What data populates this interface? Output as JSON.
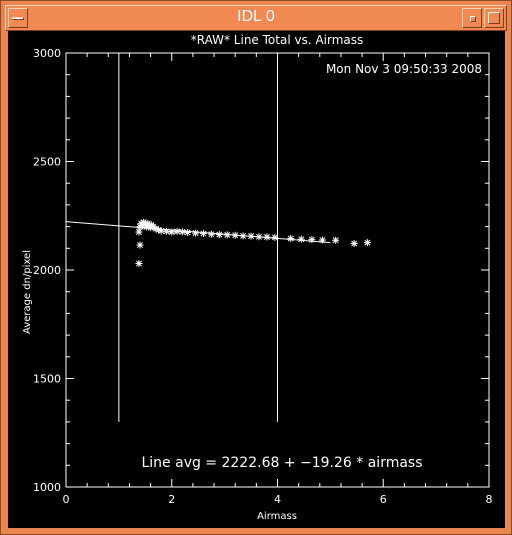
{
  "window": {
    "title": "IDL 0"
  },
  "plot": {
    "title": "*RAW* Line Total vs. Airmass",
    "timestamp": "Mon Nov  3 09:50:33 2008",
    "fit_text": "Line avg = 2222.68 + −19.26 * airmass",
    "colors": {
      "background": "#000000",
      "foreground": "#ffffff",
      "frame": "#e9844f"
    }
  },
  "chart_data": {
    "type": "scatter",
    "title": "*RAW* Line Total vs. Airmass",
    "xlabel": "Airmass",
    "ylabel": "Average dn/pixel",
    "xlim": [
      0,
      8
    ],
    "ylim": [
      1000,
      3000
    ],
    "xticks": [
      "0",
      "2",
      "4",
      "6",
      "8"
    ],
    "yticks": [
      "1000",
      "1500",
      "2000",
      "2500",
      "3000"
    ],
    "marker": "asterisk",
    "points": [
      [
        1.4,
        2200
      ],
      [
        1.42,
        2215
      ],
      [
        1.45,
        2205
      ],
      [
        1.47,
        2220
      ],
      [
        1.5,
        2210
      ],
      [
        1.52,
        2198
      ],
      [
        1.55,
        2215
      ],
      [
        1.57,
        2205
      ],
      [
        1.6,
        2195
      ],
      [
        1.62,
        2208
      ],
      [
        1.65,
        2200
      ],
      [
        1.7,
        2190
      ],
      [
        1.75,
        2185
      ],
      [
        1.8,
        2180
      ],
      [
        1.9,
        2178
      ],
      [
        2.0,
        2175
      ],
      [
        2.1,
        2178
      ],
      [
        2.2,
        2176
      ],
      [
        2.3,
        2173
      ],
      [
        2.45,
        2170
      ],
      [
        2.6,
        2168
      ],
      [
        2.75,
        2165
      ],
      [
        2.9,
        2163
      ],
      [
        3.05,
        2162
      ],
      [
        3.2,
        2160
      ],
      [
        3.35,
        2157
      ],
      [
        3.5,
        2156
      ],
      [
        3.65,
        2153
      ],
      [
        3.8,
        2152
      ],
      [
        3.95,
        2150
      ],
      [
        4.25,
        2145
      ],
      [
        4.45,
        2142
      ],
      [
        4.65,
        2140
      ],
      [
        4.85,
        2138
      ],
      [
        5.1,
        2137
      ],
      [
        5.45,
        2122
      ],
      [
        5.7,
        2126
      ],
      [
        1.38,
        2175
      ],
      [
        1.4,
        2115
      ],
      [
        1.38,
        2030
      ]
    ],
    "fit_line": {
      "x": [
        0,
        5.0
      ],
      "intercept": 2222.68,
      "slope": -19.26
    },
    "vertical_lines": [
      1.0,
      4.0
    ],
    "vertical_line_range": [
      1300,
      3000
    ],
    "fit_label": "Line avg = 2222.68 + −19.26 * airmass"
  }
}
